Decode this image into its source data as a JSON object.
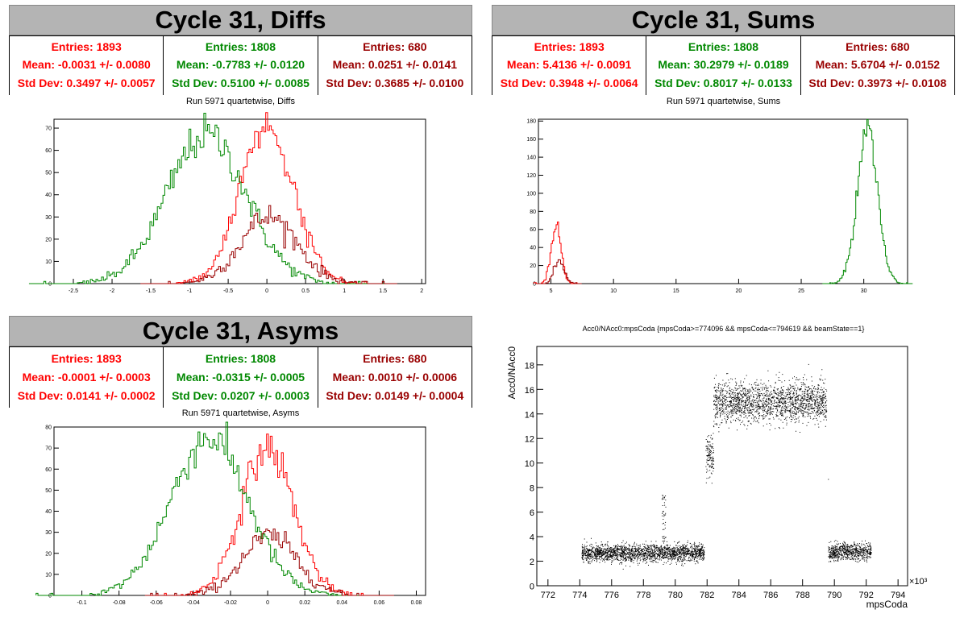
{
  "colors": {
    "red": "#ff0000",
    "green": "#008800",
    "darkred": "#990000",
    "title_bg": "#b4b4b4"
  },
  "panels": {
    "diffs": {
      "title": "Cycle 31, Diffs",
      "subtitle": "Run 5971 quartetwise, Diffs",
      "stats": [
        {
          "entries": "Entries: 1893",
          "mean": "Mean: -0.0031 +/- 0.0080",
          "std": "Std Dev: 0.3497 +/- 0.0057",
          "color": "#ff0000"
        },
        {
          "entries": "Entries: 1808",
          "mean": "Mean: -0.7783 +/- 0.0120",
          "std": "Std Dev: 0.5100 +/- 0.0085",
          "color": "#008800"
        },
        {
          "entries": "Entries: 680",
          "mean": "Mean: 0.0251 +/- 0.0141",
          "std": "Std Dev: 0.3685 +/- 0.0100",
          "color": "#990000"
        }
      ]
    },
    "sums": {
      "title": "Cycle 31, Sums",
      "subtitle": "Run 5971 quartetwise, Sums",
      "stats": [
        {
          "entries": "Entries: 1893",
          "mean": "Mean: 5.4136 +/- 0.0091",
          "std": "Std Dev: 0.3948 +/- 0.0064",
          "color": "#ff0000"
        },
        {
          "entries": "Entries: 1808",
          "mean": "Mean: 30.2979 +/- 0.0189",
          "std": "Std Dev: 0.8017 +/- 0.0133",
          "color": "#008800"
        },
        {
          "entries": "Entries: 680",
          "mean": "Mean: 5.6704 +/- 0.0152",
          "std": "Std Dev: 0.3973 +/- 0.0108",
          "color": "#990000"
        }
      ]
    },
    "asyms": {
      "title": "Cycle 31, Asyms",
      "subtitle": "Run 5971 quartetwise, Asyms",
      "stats": [
        {
          "entries": "Entries: 1893",
          "mean": "Mean: -0.0001 +/- 0.0003",
          "std": "Std Dev: 0.0141 +/- 0.0002",
          "color": "#ff0000"
        },
        {
          "entries": "Entries: 1808",
          "mean": "Mean: -0.0315 +/- 0.0005",
          "std": "Std Dev: 0.0207 +/- 0.0003",
          "color": "#008800"
        },
        {
          "entries": "Entries: 680",
          "mean": "Mean: 0.0010 +/- 0.0006",
          "std": "Std Dev: 0.0149 +/- 0.0004",
          "color": "#990000"
        }
      ]
    },
    "scatter": {
      "title": "Acc0/NAcc0:mpsCoda {mpsCoda>=774096 && mpsCoda<=794619 && beamState==1}"
    }
  },
  "chart_data": [
    {
      "type": "bar",
      "id": "diffs",
      "xlim": [
        -2.75,
        2.05
      ],
      "ylim": [
        0,
        74
      ],
      "xticks": [
        -2.5,
        -2,
        -1.5,
        -1,
        -0.5,
        0,
        0.5,
        1,
        1.5,
        2
      ],
      "xtick_labels": [
        "-2.5",
        "-2",
        "-1.5",
        "-1",
        "-0.5",
        "0",
        "0.5",
        "1",
        "1.5",
        "2"
      ],
      "yticks": [
        0,
        10,
        20,
        30,
        40,
        50,
        60,
        70
      ],
      "ytick_labels": [
        "0",
        "10",
        "20",
        "30",
        "40",
        "50",
        "60",
        "70"
      ],
      "series": [
        {
          "values": [
            {
              "x": -0.0031,
              "y": 71
            }
          ],
          "color": "#ff0000",
          "mean": -0.0031,
          "std": 0.3497
        },
        {
          "values": [
            {
              "x": -0.7783,
              "y": 67
            }
          ],
          "color": "#008800",
          "mean": -0.7783,
          "std": 0.51
        },
        {
          "values": [
            {
              "x": 0.0251,
              "y": 30
            }
          ],
          "color": "#990000",
          "mean": 0.0251,
          "std": 0.3685
        }
      ]
    },
    {
      "type": "bar",
      "id": "sums",
      "xlim": [
        4,
        33.5
      ],
      "ylim": [
        0,
        182
      ],
      "xticks": [
        5,
        10,
        15,
        20,
        25,
        30
      ],
      "xtick_labels": [
        "5",
        "10",
        "15",
        "20",
        "25",
        "30"
      ],
      "yticks": [
        0,
        20,
        40,
        60,
        80,
        100,
        120,
        140,
        160,
        180
      ],
      "ytick_labels": [
        "0",
        "20",
        "40",
        "60",
        "80",
        "100",
        "120",
        "140",
        "160",
        "180"
      ],
      "series": [
        {
          "values": [
            {
              "x": 5.4136,
              "y": 65
            }
          ],
          "color": "#ff0000",
          "mean": 5.4136,
          "std": 0.3948
        },
        {
          "values": [
            {
              "x": 30.2979,
              "y": 175
            }
          ],
          "color": "#008800",
          "mean": 30.2979,
          "std": 0.8017
        },
        {
          "values": [
            {
              "x": 5.6704,
              "y": 24
            }
          ],
          "color": "#990000",
          "mean": 5.6704,
          "std": 0.3973
        }
      ]
    },
    {
      "type": "bar",
      "id": "asyms",
      "xlim": [
        -0.115,
        0.085
      ],
      "ylim": [
        0,
        80
      ],
      "xticks": [
        -0.1,
        -0.08,
        -0.06,
        -0.04,
        -0.02,
        0,
        0.02,
        0.04,
        0.06,
        0.08
      ],
      "xtick_labels": [
        "-0.1",
        "-0.08",
        "-0.06",
        "-0.04",
        "-0.02",
        "0",
        "0.02",
        "0.04",
        "0.06",
        "0.08"
      ],
      "yticks": [
        0,
        10,
        20,
        30,
        40,
        50,
        60,
        70,
        80
      ],
      "ytick_labels": [
        "0",
        "10",
        "20",
        "30",
        "40",
        "50",
        "60",
        "70",
        "80"
      ],
      "series": [
        {
          "values": [
            {
              "x": -0.0001,
              "y": 70
            }
          ],
          "color": "#ff0000",
          "mean": -0.0001,
          "std": 0.0141
        },
        {
          "values": [
            {
              "x": -0.0315,
              "y": 75
            }
          ],
          "color": "#008800",
          "mean": -0.0315,
          "std": 0.0207
        },
        {
          "values": [
            {
              "x": 0.001,
              "y": 28
            }
          ],
          "color": "#990000",
          "mean": 0.001,
          "std": 0.0149
        }
      ]
    },
    {
      "type": "scatter",
      "id": "acc",
      "xlabel": "mpsCoda",
      "ylabel": "Acc0/NAcc0",
      "x_multiplier": "×10³",
      "xlim": [
        771.3,
        794.6
      ],
      "ylim": [
        0,
        19.5
      ],
      "xticks": [
        772,
        774,
        776,
        778,
        780,
        782,
        784,
        786,
        788,
        790,
        792,
        794
      ],
      "xtick_labels": [
        "772",
        "774",
        "776",
        "778",
        "780",
        "782",
        "784",
        "786",
        "788",
        "790",
        "792",
        "794"
      ],
      "yticks": [
        0,
        2,
        4,
        6,
        8,
        10,
        12,
        14,
        16,
        18
      ],
      "ytick_labels": [
        "0",
        "2",
        "4",
        "6",
        "8",
        "10",
        "12",
        "14",
        "16",
        "18"
      ],
      "clusters": [
        {
          "x_range": [
            774.1,
            781.8
          ],
          "y_center": 2.7,
          "y_spread": 0.35
        },
        {
          "x_range": [
            781.9,
            782.4
          ],
          "y_center": 10.6,
          "y_spread": 0.9
        },
        {
          "x_range": [
            782.4,
            789.5
          ],
          "y_center": 15.0,
          "y_spread": 0.8
        },
        {
          "x_range": [
            789.6,
            792.3
          ],
          "y_center": 2.8,
          "y_spread": 0.35
        }
      ],
      "outliers": [
        {
          "x": 779.3,
          "y": 6.8
        },
        {
          "x": 779.3,
          "y": 5.8
        },
        {
          "x": 779.2,
          "y": 4.6
        },
        {
          "x": 779.3,
          "y": 7.2
        },
        {
          "x": 789.6,
          "y": 8.7
        }
      ]
    }
  ]
}
